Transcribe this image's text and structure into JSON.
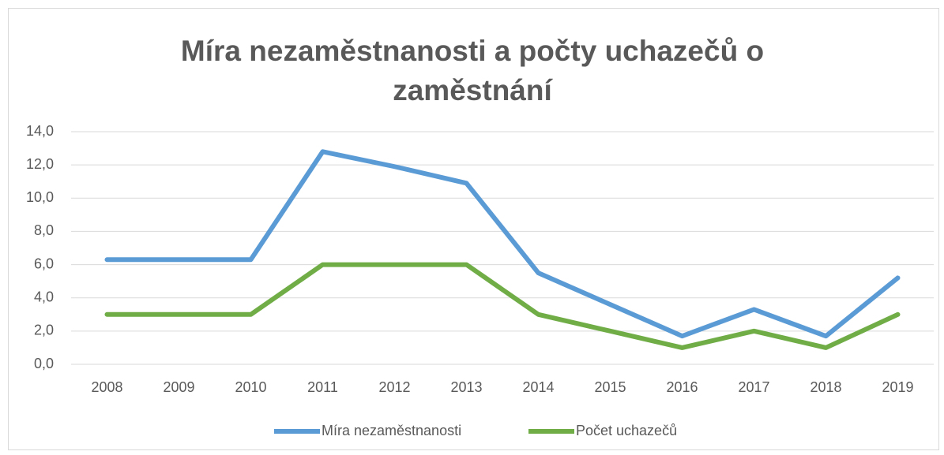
{
  "chart_data": {
    "type": "line",
    "title": "Míra nezaměstnanosti a počty uchazečů o zaměstnání",
    "categories": [
      "2008",
      "2009",
      "2010",
      "2011",
      "2012",
      "2013",
      "2014",
      "2015",
      "2016",
      "2017",
      "2018",
      "2019"
    ],
    "series": [
      {
        "name": "Míra nezaměstnanosti",
        "color": "#5b9bd5",
        "values": [
          6.3,
          6.3,
          6.3,
          12.8,
          11.9,
          10.9,
          5.5,
          3.6,
          1.7,
          3.3,
          1.7,
          5.2
        ]
      },
      {
        "name": "Počet uchazečů",
        "color": "#70ad47",
        "values": [
          3,
          3,
          3,
          6,
          6,
          6,
          3,
          2,
          1,
          2,
          1,
          3
        ]
      }
    ],
    "ylim": [
      0,
      14
    ],
    "yticks": [
      {
        "value": 0,
        "label": "0,0"
      },
      {
        "value": 2,
        "label": "2,0"
      },
      {
        "value": 4,
        "label": "4,0"
      },
      {
        "value": 6,
        "label": "6,0"
      },
      {
        "value": 8,
        "label": "8,0"
      },
      {
        "value": 10,
        "label": "10,0"
      },
      {
        "value": 12,
        "label": "12,0"
      },
      {
        "value": 14,
        "label": "14,0"
      }
    ],
    "grid": true,
    "legend": "bottom"
  }
}
